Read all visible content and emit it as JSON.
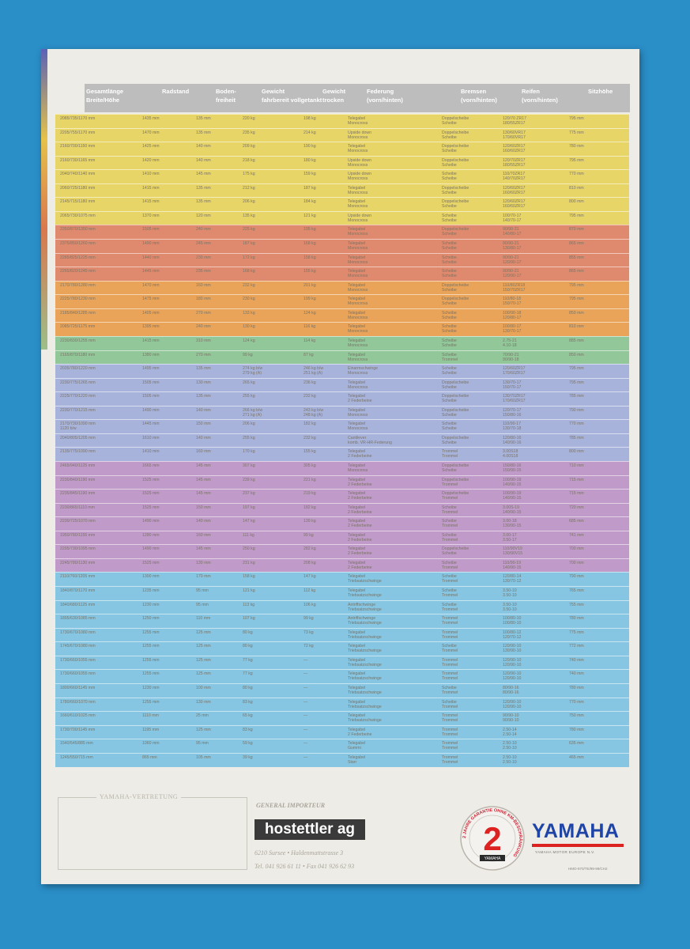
{
  "header": {
    "col_gesamt": "Gesamtlänge\nBreite/Höhe",
    "col_radstand": "Radstand",
    "col_boden": "Boden-\nfreiheit",
    "col_gewicht_fahrbereit": "Gewicht\nfahrbereit vollgetankt",
    "col_gewicht_trocken": "Gewicht\ntrocken",
    "col_federung": "Federung\n(vorn/hinten)",
    "col_bremsen": "Bremsen\n(vorn/hinten)",
    "col_reifen": "Reifen\n(vorn/hinten)",
    "col_sitzhoehe": "Sitzhöhe"
  },
  "groups": [
    {
      "color": "#e8d568",
      "rows": [
        [
          "2085/735/1170 mm",
          "1435 mm",
          "135 mm",
          "220 kg",
          "198 kg",
          "Telegabel\nMonocross",
          "Doppelscheibe\nScheibe",
          "120/70 ZR17\n180/55ZR17",
          "795 mm"
        ],
        [
          "2205/755/1170 mm",
          "1470 mm",
          "135 mm",
          "235 kg",
          "214 kg",
          "Upside down\nMonocross",
          "Doppelscheibe\nScheibe",
          "130/60VR17\n170/60VR17",
          "775 mm"
        ],
        [
          "2160/700/1150 mm",
          "1425 mm",
          "140 mm",
          "209 kg",
          "190 kg",
          "Telegabel\nMonocross",
          "Doppelscheibe\nScheibe",
          "120/60ZR17\n160/60ZR17",
          "780 mm"
        ],
        [
          "2160/730/1165 mm",
          "1420 mm",
          "140 mm",
          "218 kg",
          "180 kg",
          "Upside down\nMonocross",
          "Doppelscheibe\nScheibe",
          "120/70ZR17\n180/55ZR17",
          "795 mm"
        ],
        [
          "2040/740/1140 mm",
          "1410 mm",
          "145 mm",
          "175 kg",
          "159 kg",
          "Upside down\nMonocross",
          "Scheibe\nScheibe",
          "110/70ZR17\n140/70ZR17",
          "770 mm"
        ],
        [
          "2060/725/1180 mm",
          "1415 mm",
          "135 mm",
          "212 kg",
          "187 kg",
          "Telegabel\nMonocross",
          "Doppelscheibe\nScheibe",
          "120/60ZR17\n160/60ZR17",
          "810 mm"
        ],
        [
          "2145/715/1180 mm",
          "1415 mm",
          "135 mm",
          "206 kg",
          "184 kg",
          "Telegabel\nMonocross",
          "Doppelscheibe\nScheibe",
          "120/60ZR17\n160/60ZR17",
          "800 mm"
        ],
        [
          "2065/730/1075 mm",
          "1370 mm",
          "120 mm",
          "135 kg",
          "121 kg",
          "Upside down\nMonocross",
          "Scheibe\nScheibe",
          "100/70-17\n140/70-17",
          "795 mm"
        ]
      ]
    },
    {
      "color": "#df8a6e",
      "rows": [
        [
          "2350/870/1350 mm",
          "1505 mm",
          "240 mm",
          "225 kg",
          "195 kg",
          "Telegabel\nMonocross",
          "Doppelscheibe\nScheibe",
          "90/90-21\n140/80-17",
          "870 mm"
        ],
        [
          "2375/850/1260 mm",
          "1490 mm",
          "245 mm",
          "187 kg",
          "168 kg",
          "Telegabel\nMonocross",
          "Scheibe\nScheibe",
          "90/90-21\n130/80-17",
          "865 mm"
        ],
        [
          "2285/825/1225 mm",
          "1440 mm",
          "230 mm",
          "172 kg",
          "158 kg",
          "Telegabel\nMonocross",
          "Scheibe\nScheibe",
          "90/90-21\n120/90-17",
          "855 mm"
        ],
        [
          "2265/820/1245 mm",
          "1445 mm",
          "235 mm",
          "168 kg",
          "155 kg",
          "Telegabel\nMonocross",
          "Scheibe\nScheibe",
          "90/90-21\n120/90-17",
          "865 mm"
        ]
      ]
    },
    {
      "color": "#e9a45a",
      "rows": [
        [
          "2170/780/1280 mm",
          "1470 mm",
          "160 mm",
          "232 kg",
          "201 kg",
          "Telegabel\nMonocross",
          "Doppelscheibe\nScheibe",
          "110/80ZR18\n150/70ZR17",
          "795 mm"
        ],
        [
          "2225/780/1230 mm",
          "1475 mm",
          "180 mm",
          "230 kg",
          "199 kg",
          "Telegabel\nMonocross",
          "Doppelscheibe\nScheibe",
          "110/80-18\n150/70-17",
          "795 mm"
        ],
        [
          "2185/840/1285 mm",
          "1405 mm",
          "270 mm",
          "133 kg",
          "124 kg",
          "Telegabel\nMonocross",
          "Scheibe\nScheibe",
          "100/90-18\n120/80-17",
          "850 mm"
        ],
        [
          "2085/725/1175 mm",
          "1395 mm",
          "240 mm",
          "130 kg",
          "116 kg",
          "Telegabel\nMonocross",
          "Scheibe\nScheibe",
          "100/80-17\n130/70-17",
          "810 mm"
        ]
      ]
    },
    {
      "color": "#92c79a",
      "rows": [
        [
          "2230/830/1255 mm",
          "1415 mm",
          "310 mm",
          "124 kg",
          "114 kg",
          "Telegabel\nMonocross",
          "Scheibe\nScheibe",
          "2.75-21\n4.10-18",
          "885 mm"
        ],
        [
          "2165/870/1180 mm",
          "1380 mm",
          "270 mm",
          "99 kg",
          "87 kg",
          "Telegabel\nMonocross",
          "Scheibe\nTrommel",
          "70/90-21\n90/90-18",
          "850 mm"
        ]
      ]
    },
    {
      "color": "#a8b3dc",
      "rows": [
        [
          "2035/780/1220 mm",
          "1495 mm",
          "135 mm",
          "274 kg b/w\n279 kg (A)",
          "246 kg b/w\n251 kg (A)",
          "Einarmschwinge\nMonocross",
          "Scheibe\nScheibe",
          "120/60ZR17\n170/60ZR17",
          "795 mm"
        ],
        [
          "2230/775/1265 mm",
          "1505 mm",
          "130 mm",
          "265 kg",
          "236 kg",
          "Telegabel\nMonocross",
          "Doppelscheibe\nScheibe",
          "130/70-17\n150/70-17",
          "795 mm"
        ],
        [
          "2225/770/1220 mm",
          "1505 mm",
          "135 mm",
          "255 kg",
          "232 kg",
          "Telegabel\n2 Federbeine",
          "Doppelscheibe\nScheibe",
          "130/70ZR17\n170/60ZR17",
          "785 mm"
        ],
        [
          "2230/770/1215 mm",
          "1490 mm",
          "140 mm",
          "266 kg b/w\n271 kg (A)",
          "243 kg b/w\n248 kg (A)",
          "Telegabel\nMonocross",
          "Doppelscheibe\nScheibe",
          "120/70-17\n150/80-16",
          "790 mm"
        ],
        [
          "2170/730/1090 mm\n1120 b/w",
          "1445 mm",
          "150 mm",
          "206 kg",
          "182 kg",
          "Telegabel\nMonocross",
          "Scheibe\nScheibe",
          "110/90-17\n130/70-18",
          "770 mm"
        ],
        [
          "2040/805/1205 mm",
          "1610 mm",
          "140 mm",
          "255 kg",
          "232 kg",
          "Cantilever\nkomb. VR-HR-Federung",
          "Doppelscheibe\nScheibe",
          "120/80-16\n140/90-16",
          "785 mm"
        ],
        [
          "2135/775/1090 mm",
          "1410 mm",
          "160 mm",
          "170 kg",
          "155 kg",
          "Telegabel\n2 Federbeine",
          "Trommel\nTrommel",
          "3.00S18\n4.00S18",
          "800 mm"
        ]
      ]
    },
    {
      "color": "#c09ac8",
      "rows": [
        [
          "2465/940/1125 mm",
          "1665 mm",
          "145 mm",
          "307 kg",
          "305 kg",
          "Telegabel\nMonocross",
          "Doppelscheibe\nScheibe",
          "150/80-16\n150/90-15",
          "710 mm"
        ],
        [
          "2230/840/1190 mm",
          "1525 mm",
          "145 mm",
          "239 kg",
          "221 kg",
          "Telegabel\n2 Federbeine",
          "Doppelscheibe\nTrommel",
          "100/90-19\n140/90-15",
          "715 mm"
        ],
        [
          "2235/845/1190 mm",
          "1525 mm",
          "145 mm",
          "237 kg",
          "219 kg",
          "Telegabel\n2 Federbeine",
          "Doppelscheibe\nTrommel",
          "100/90-19\n140/90-15",
          "715 mm"
        ],
        [
          "2230/865/1110 mm",
          "1525 mm",
          "150 mm",
          "197 kg",
          "182 kg",
          "Telegabel\n2 Federbeine",
          "Scheibe\nTrommel",
          "3.00S-19\n140/90-15",
          "720 mm"
        ],
        [
          "2230/725/1070 mm",
          "1490 mm",
          "140 mm",
          "147 kg",
          "139 kg",
          "Telegabel\n2 Federbeine",
          "Scheibe\nTrommel",
          "3.00-18\n130/90-15",
          "685 mm"
        ],
        [
          "1950/780/1155 mm",
          "1280 mm",
          "160 mm",
          "111 kg",
          "99 kg",
          "Telegabel\n2 Federbeine",
          "Scheibe\nTrommel",
          "3.00-17\n3.50-17",
          "741 mm"
        ],
        [
          "2295/730/1095 mm",
          "1490 mm",
          "145 mm",
          "250 kg",
          "282 kg",
          "Telegabel\n2 Federbeine",
          "Doppelscheibe\nScheibe",
          "110/90V19\n130/90V15",
          "700 mm"
        ],
        [
          "2245/780/1130 mm",
          "1525 mm",
          "130 mm",
          "231 kg",
          "208 kg",
          "Telegabel\n2 Federbeine",
          "Scheibe\nTrommel",
          "110/90-19\n140/90-15",
          "700 mm"
        ]
      ]
    },
    {
      "color": "#86c6e3",
      "rows": [
        [
          "2110/760/1205 mm",
          "1300 mm",
          "170 mm",
          "158 kg",
          "147 kg",
          "Telegabel\nTriebsatzschwinge",
          "Scheibe\nTrommel",
          "120/80-14\n130/70-12",
          "790 mm"
        ],
        [
          "1840/870/1170 mm",
          "1235 mm",
          "95 mm",
          "121 kg",
          "112 kg",
          "Telegabel\nTriebsatzschwinge",
          "Scheibe\nTrommel",
          "3.50-10\n3.50-10",
          "765 mm"
        ],
        [
          "1840/680/1125 mm",
          "1230 mm",
          "95 mm",
          "113 kg",
          "106 kg",
          "Antriffschwinge\nTriebsatzschwinge",
          "Scheibe\nTrommel",
          "3.50-10\n3.50-10",
          "755 mm"
        ],
        [
          "1895/630/1085 mm",
          "1250 mm",
          "110 mm",
          "107 kg",
          "99 kg",
          "Antriffschwinge\nTriebsatzschwinge",
          "Trommel\nTrommel",
          "100/80-10\n100/80-10",
          "780 mm"
        ],
        [
          "1730/670/1080 mm",
          "1255 mm",
          "125 mm",
          "80 kg",
          "73 kg",
          "Telegabel\nTriebsatzschwinge",
          "Trommel\nTrommel",
          "100/80-12\n120/70-12",
          "775 mm"
        ],
        [
          "1745/670/1080 mm",
          "1255 mm",
          "125 mm",
          "80 kg",
          "72 kg",
          "Telegabel\nTriebsatzschwinge",
          "Scheibe\nTrommel",
          "120/90-10\n130/90-10",
          "772 mm"
        ],
        [
          "1730/660/1055 mm",
          "1255 mm",
          "125 mm",
          "77 kg",
          "—",
          "Telegabel\nTriebsatzschwinge",
          "Trommel\nTrommel",
          "120/90-10\n120/90-10",
          "740 mm"
        ],
        [
          "1730/660/1055 mm",
          "1255 mm",
          "125 mm",
          "77 kg",
          "—",
          "Telegabel\nTriebsatzschwinge",
          "Trommel\nTrommel",
          "120/90-10\n120/90-10",
          "740 mm"
        ],
        [
          "1800/660/1145 mm",
          "1230 mm",
          "100 mm",
          "80 kg",
          "—",
          "Telegabel\nTriebsatzschwinge",
          "Scheibe\nTrommel",
          "80/90-16\n80/90-16",
          "780 mm"
        ],
        [
          "1780/660/1070 mm",
          "1255 mm",
          "130 mm",
          "83 kg",
          "—",
          "Telegabel\nTriebsatzschwinge",
          "Scheibe\nTrommel",
          "120/90-10\n120/90-10",
          "770 mm"
        ],
        [
          "1660/610/1025 mm",
          "1110 mm",
          "25 mm",
          "65 kg",
          "—",
          "Telegabel\nTriebsatzschwinge",
          "Trommel\nTrommel",
          "90/90-10\n90/90-10",
          "750 mm"
        ],
        [
          "1730/700/1145 mm",
          "1195 mm",
          "125 mm",
          "83 kg",
          "—",
          "Telegabel\n2 Federbeine",
          "Trommel\nTrommel",
          "2.50-14\n2.50-14",
          "780 mm"
        ],
        [
          "1540/545/885 mm",
          "1060 mm",
          "95 mm",
          "59 kg",
          "—",
          "Telegabel\nGummi",
          "Trommel\nTrommel",
          "2.50-10\n2.50-10",
          "635 mm"
        ],
        [
          "1245/550/715 mm",
          "865 mm",
          "105 mm",
          "39 kg",
          "—",
          "Telegabel\nStarr",
          "Trommel\nTrommel",
          "2.50-10\n2.50-10",
          "465 mm"
        ]
      ]
    }
  ],
  "footer": {
    "dealer_label": "YAMAHA-VERTRETUNG",
    "importer_label": "GENERAL IMPORTEUR",
    "importer_name": "hostettler ag",
    "address": "6210 Sursee • Haldenmattstrasse 3",
    "phone": "Tel. 041 926 61 11 • Fax 041 926 62 93",
    "badge_number": "2",
    "badge_ring_text": "2 JAHRE GARANTIE OHNE KM-BESCHRÄNKUNG",
    "badge_yamaha": "YAMAHA",
    "brand": "YAMAHA",
    "brand_sub": "YAMAHA MOTOR EUROPE N.V.",
    "code": "HMO-970/TE/99-99/CH2"
  },
  "colors": {
    "header_gray": "#bdbdbd",
    "yamaha_blue": "#1f44a8",
    "yamaha_red": "#d22",
    "background_blue": "#2a8ec7"
  }
}
